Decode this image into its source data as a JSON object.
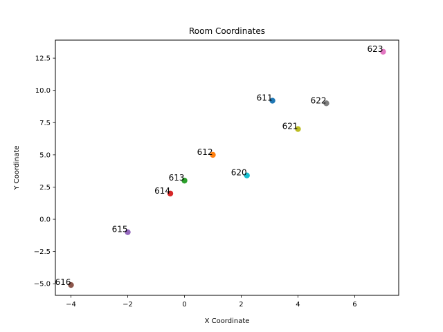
{
  "chart_data": {
    "type": "scatter",
    "title": "Room Coordinates",
    "xlabel": "X Coordinate",
    "ylabel": "Y Coordinate",
    "xlim": [
      -4.55,
      7.55
    ],
    "ylim": [
      -5.9,
      13.9
    ],
    "xticks": [
      -4,
      -2,
      0,
      2,
      4,
      6
    ],
    "xtick_labels": [
      "−4",
      "−2",
      "0",
      "2",
      "4",
      "6"
    ],
    "yticks": [
      -5.0,
      -2.5,
      0.0,
      2.5,
      5.0,
      7.5,
      10.0,
      12.5
    ],
    "ytick_labels": [
      "−5.0",
      "−2.5",
      "0.0",
      "2.5",
      "5.0",
      "7.5",
      "10.0",
      "12.5"
    ],
    "grid": false,
    "points": [
      {
        "label": "611",
        "x": 3.1,
        "y": 9.2,
        "color": "#1f77b4"
      },
      {
        "label": "612",
        "x": 1.0,
        "y": 5.0,
        "color": "#ff7f0e"
      },
      {
        "label": "613",
        "x": 0.0,
        "y": 3.0,
        "color": "#2ca02c"
      },
      {
        "label": "614",
        "x": -0.5,
        "y": 2.0,
        "color": "#d62728"
      },
      {
        "label": "615",
        "x": -2.0,
        "y": -1.0,
        "color": "#9467bd"
      },
      {
        "label": "616",
        "x": -4.0,
        "y": -5.1,
        "color": "#8c564b"
      },
      {
        "label": "623",
        "x": 7.0,
        "y": 13.0,
        "color": "#e377c2"
      },
      {
        "label": "622",
        "x": 5.0,
        "y": 9.0,
        "color": "#7f7f7f"
      },
      {
        "label": "621",
        "x": 4.0,
        "y": 7.0,
        "color": "#bcbd22"
      },
      {
        "label": "620",
        "x": 2.2,
        "y": 3.4,
        "color": "#17becf"
      }
    ]
  }
}
